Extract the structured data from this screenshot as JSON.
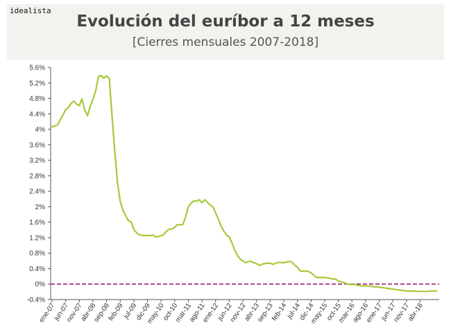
{
  "brand": "idealista",
  "title": "Evolución del euríbor a 12 meses",
  "subtitle": "[Cierres mensuales 2007-2018]",
  "colors": {
    "line": "#a6c937",
    "zero_line": "#9b1b6e",
    "header_bg": "#f2f2ee"
  },
  "chart_data": {
    "type": "line",
    "ylim": [
      -0.4,
      5.6
    ],
    "yticks": [
      "5.6%",
      "5.2%",
      "4.8%",
      "4.4%",
      "4%",
      "3.6%",
      "3.2%",
      "2.8%",
      "2.4%",
      "2%",
      "1.6%",
      "1.2%",
      "0.8%",
      "0.4%",
      "0%",
      "-0.4%"
    ],
    "ytick_values": [
      5.6,
      5.2,
      4.8,
      4.4,
      4.0,
      3.6,
      3.2,
      2.8,
      2.4,
      2.0,
      1.6,
      1.2,
      0.8,
      0.4,
      0.0,
      -0.4
    ],
    "xticks": [
      "ene-07",
      "jun-07",
      "nov-07",
      "abr-08",
      "sep-08",
      "feb-09",
      "jul-09",
      "dic-09",
      "may-10",
      "oct-10",
      "mar-11",
      "ago-11",
      "ene-12",
      "jun-12",
      "nov-12",
      "abr-13",
      "sep-13",
      "feb-14",
      "jul-14",
      "dic-14",
      "may-15",
      "oct-15",
      "mar-16",
      "ago-16",
      "ene-17",
      "jun-17",
      "nov-17",
      "abr-18"
    ],
    "reference_line": 0,
    "grid": false,
    "series": [
      {
        "values": [
          4.06,
          4.09,
          4.11,
          4.25,
          4.37,
          4.51,
          4.56,
          4.67,
          4.73,
          4.65,
          4.61,
          4.79,
          4.5,
          4.35,
          4.59,
          4.78,
          4.99,
          5.36,
          5.39,
          5.32,
          5.38,
          5.32,
          4.35,
          3.45,
          2.62,
          2.14,
          1.91,
          1.77,
          1.64,
          1.61,
          1.41,
          1.33,
          1.27,
          1.26,
          1.25,
          1.26,
          1.25,
          1.27,
          1.22,
          1.23,
          1.25,
          1.28,
          1.37,
          1.42,
          1.42,
          1.47,
          1.54,
          1.53,
          1.54,
          1.74,
          2.0,
          2.09,
          2.15,
          2.14,
          2.18,
          2.1,
          2.18,
          2.11,
          2.04,
          2.0,
          1.84,
          1.68,
          1.5,
          1.37,
          1.27,
          1.22,
          1.06,
          0.88,
          0.74,
          0.65,
          0.6,
          0.55,
          0.58,
          0.59,
          0.55,
          0.53,
          0.48,
          0.51,
          0.53,
          0.54,
          0.54,
          0.51,
          0.54,
          0.56,
          0.56,
          0.55,
          0.57,
          0.59,
          0.57,
          0.49,
          0.44,
          0.34,
          0.33,
          0.34,
          0.33,
          0.29,
          0.23,
          0.17,
          0.17,
          0.17,
          0.17,
          0.16,
          0.15,
          0.13,
          0.13,
          0.08,
          0.06,
          0.04,
          0.01,
          -0.01,
          -0.01,
          -0.01,
          -0.03,
          -0.04,
          -0.05,
          -0.05,
          -0.05,
          -0.06,
          -0.07,
          -0.07,
          -0.08,
          -0.09,
          -0.1,
          -0.11,
          -0.12,
          -0.13,
          -0.14,
          -0.15,
          -0.16,
          -0.17,
          -0.18,
          -0.18,
          -0.18,
          -0.18,
          -0.19,
          -0.19,
          -0.19,
          -0.19,
          -0.19,
          -0.18,
          -0.18,
          -0.18
        ]
      }
    ]
  }
}
